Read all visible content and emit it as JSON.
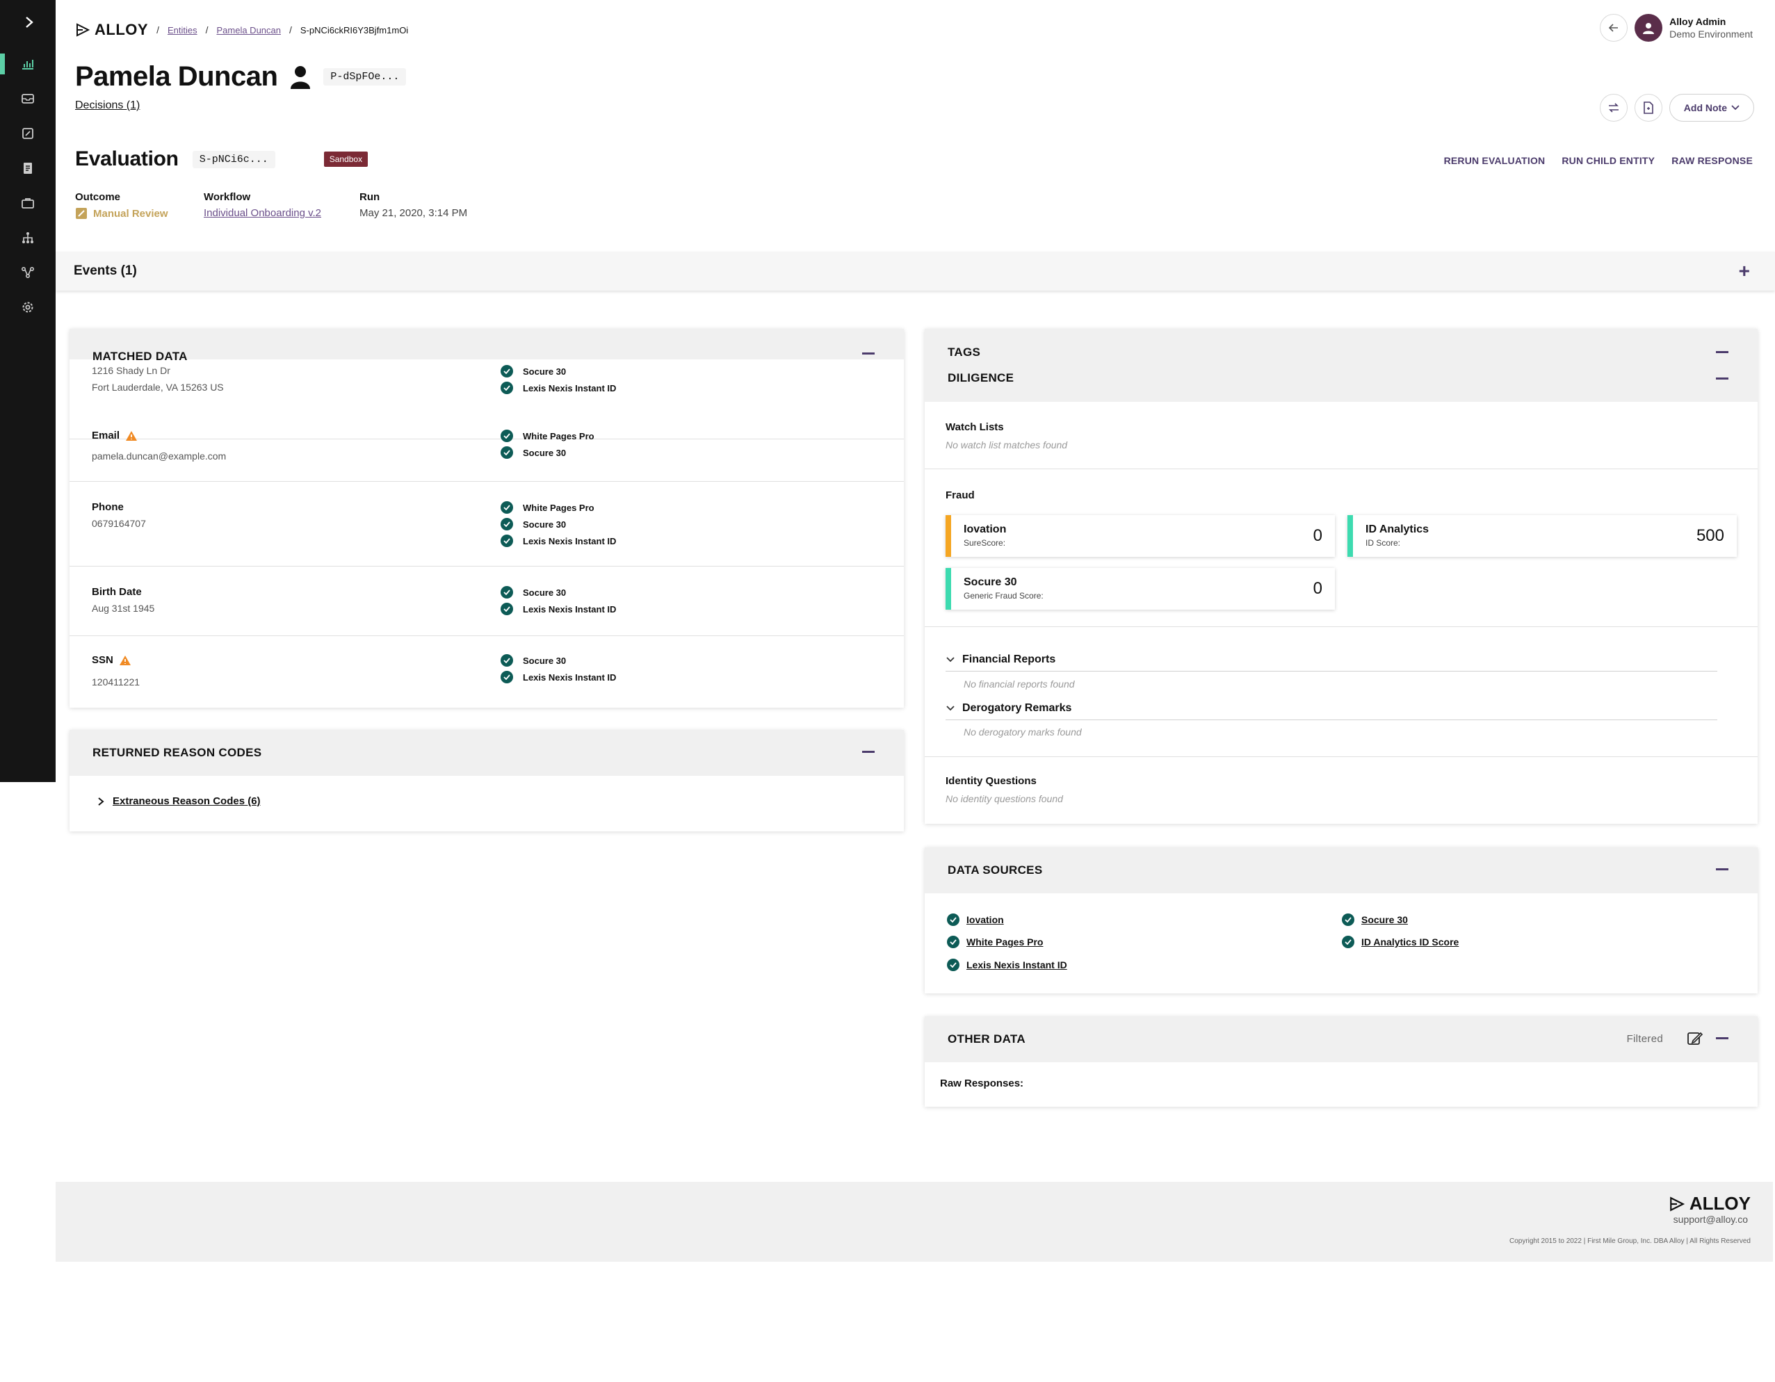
{
  "breadcrumb": {
    "brand": "ALLOY",
    "entities": "Entities",
    "entity": "Pamela Duncan",
    "current": "S-pNCi6ckRI6Y3Bjfm1mOi"
  },
  "user": {
    "name": "Alloy Admin",
    "environment": "Demo Environment"
  },
  "entity": {
    "name": "Pamela Duncan",
    "id_chip": "P-dSpFOe...",
    "decisions_link": "Decisions (1)",
    "add_note": "Add Note"
  },
  "evaluation": {
    "title": "Evaluation",
    "id_chip": "S-pNCi6c...",
    "badge": "Sandbox",
    "actions": [
      "RERUN EVALUATION",
      "RUN CHILD ENTITY",
      "RAW RESPONSE"
    ],
    "outcome_label": "Outcome",
    "outcome_value": "Manual Review",
    "workflow_label": "Workflow",
    "workflow_value": "Individual Onboarding v.2",
    "run_label": "Run",
    "run_value": "May 21, 2020, 3:14 PM"
  },
  "events": {
    "title": "Events (1)"
  },
  "matched_data": {
    "title": "MATCHED DATA",
    "address_line1": "1216 Shady Ln Dr",
    "address_line2": "Fort Lauderdale, VA 15263 US",
    "address_sources": [
      "Socure 30",
      "Lexis Nexis Instant ID"
    ],
    "rows": [
      {
        "label": "Email",
        "value": "pamela.duncan@example.com",
        "sources": [
          "White Pages Pro",
          "Socure 30"
        ]
      },
      {
        "label": "Phone",
        "value": "0679164707",
        "sources": [
          "White Pages Pro",
          "Socure 30",
          "Lexis Nexis Instant ID"
        ]
      },
      {
        "label": "Birth Date",
        "value": "Aug 31st 1945",
        "sources": [
          "Socure 30",
          "Lexis Nexis Instant ID"
        ]
      },
      {
        "label": "SSN",
        "value": "120411221",
        "sources": [
          "Socure 30",
          "Lexis Nexis Instant ID"
        ]
      }
    ]
  },
  "reason_codes": {
    "title": "RETURNED REASON CODES",
    "extraneous": "Extraneous Reason Codes (6)"
  },
  "tags": {
    "title": "TAGS",
    "diligence": "DILIGENCE",
    "watch_lists_label": "Watch Lists",
    "watch_lists_empty": "No watch list matches found",
    "fraud_label": "Fraud",
    "scores": [
      {
        "name": "Iovation",
        "sub": "SureScore:",
        "value": "0",
        "color": "#f5a623"
      },
      {
        "name": "ID Analytics",
        "sub": "ID Score:",
        "value": "500",
        "color": "#3ddbb0"
      },
      {
        "name": "Socure 30",
        "sub": "Generic Fraud Score:",
        "value": "0",
        "color": "#3ddbb0"
      }
    ],
    "financial_reports": "Financial Reports",
    "financial_empty": "No financial reports found",
    "derogatory": "Derogatory Remarks",
    "derogatory_empty": "No derogatory marks found",
    "identity_label": "Identity Questions",
    "identity_empty": "No identity questions found"
  },
  "data_sources": {
    "title": "DATA SOURCES",
    "left": [
      "Iovation",
      "White Pages Pro",
      "Lexis Nexis Instant ID"
    ],
    "right": [
      "Socure 30",
      "ID Analytics ID Score"
    ]
  },
  "other_data": {
    "title": "OTHER DATA",
    "filtered": "Filtered",
    "raw_responses": "Raw Responses:"
  },
  "footer": {
    "brand": "ALLOY",
    "support": "support@alloy.co",
    "copyright": "Copyright 2015 to 2022  |  First Mile Group, Inc. DBA Alloy  |  All Rights Reserved"
  },
  "colors": {
    "sidebar": "#151515",
    "accent": "#4b3b6b",
    "check": "#0d5b56",
    "outcome": "#c4a35a",
    "warning": "#f08a24"
  }
}
